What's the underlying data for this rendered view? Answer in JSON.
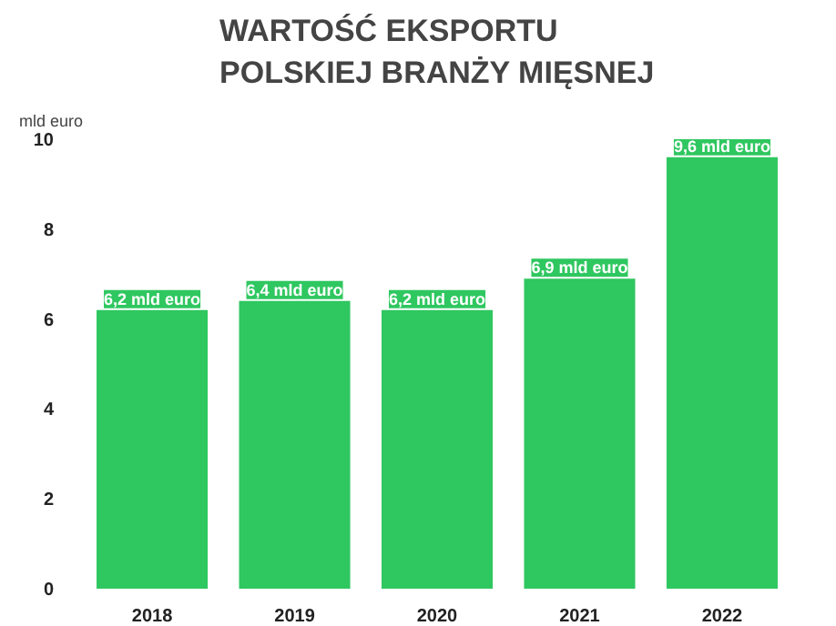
{
  "chart_data": {
    "type": "bar",
    "title": "WARTOŚĆ EKSPORTU\nPOLSKIEJ BRANŻY MIĘSNEJ",
    "ylabel": "mld euro",
    "categories": [
      "2018",
      "2019",
      "2020",
      "2021",
      "2022"
    ],
    "values": [
      6.2,
      6.4,
      6.2,
      6.9,
      9.6
    ],
    "value_labels": [
      "6,2 mld euro",
      "6,4 mld euro",
      "6,2 mld euro",
      "6,9 mld euro",
      "9,6 mld euro"
    ],
    "color": "#2fc760",
    "ylim": [
      0,
      10
    ],
    "yticks": [
      0,
      2,
      4,
      6,
      8,
      10
    ],
    "grid": false
  }
}
